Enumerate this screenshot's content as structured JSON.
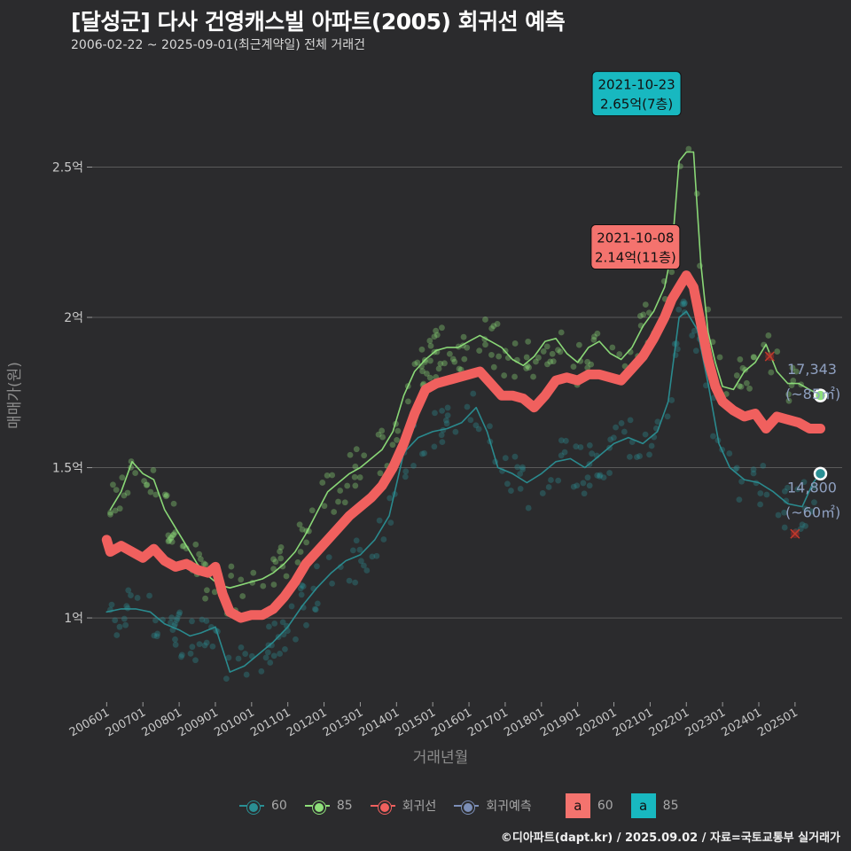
{
  "title": "[달성군] 다사 건영캐스빌 아파트(2005) 회귀선 예측",
  "subtitle": "2006-02-22 ~ 2025-09-01(최근계약일) 전체 거래건",
  "footer": "©디아파트(dapt.kr) / 2025.09.02 / 자료=국토교통부 실거래가",
  "colors": {
    "background": "#2b2b2d",
    "grid": "#5a5a5a",
    "s60": "#2a8f94",
    "s85": "#8ee07a",
    "regression": "#f0605e",
    "forecast": "#7c8fb8",
    "box60": "#f4736e",
    "box85": "#18b8c0"
  },
  "chart_data": {
    "type": "line",
    "title": "[달성군] 다사 건영캐스빌 아파트(2005) 회귀선 예측",
    "xlabel": "거래년월",
    "ylabel": "매매가(원)",
    "x_ticks": [
      "200601",
      "200701",
      "200801",
      "200901",
      "201001",
      "201101",
      "201201",
      "201301",
      "201401",
      "201501",
      "201601",
      "201701",
      "201801",
      "201901",
      "202001",
      "202101",
      "202201",
      "202301",
      "202401",
      "202501"
    ],
    "y_ticks": [
      {
        "value": 1.0,
        "label": "1억"
      },
      {
        "value": 1.5,
        "label": "1.5억"
      },
      {
        "value": 2.0,
        "label": "2억"
      },
      {
        "value": 2.5,
        "label": "2.5억"
      }
    ],
    "xlim": [
      2005.6,
      2026.3
    ],
    "ylim": [
      0.72,
      2.82
    ],
    "grid": true,
    "legend_position": "bottom",
    "series": [
      {
        "name": "85",
        "key": "s85",
        "points": [
          [
            2006.1,
            1.36
          ],
          [
            2006.4,
            1.42
          ],
          [
            2006.7,
            1.52
          ],
          [
            2007.0,
            1.48
          ],
          [
            2007.3,
            1.46
          ],
          [
            2007.6,
            1.36
          ],
          [
            2007.9,
            1.3
          ],
          [
            2008.2,
            1.24
          ],
          [
            2008.5,
            1.18
          ],
          [
            2008.8,
            1.14
          ],
          [
            2009.1,
            1.11
          ],
          [
            2009.4,
            1.1
          ],
          [
            2009.7,
            1.11
          ],
          [
            2010.0,
            1.12
          ],
          [
            2010.3,
            1.13
          ],
          [
            2010.6,
            1.15
          ],
          [
            2010.9,
            1.18
          ],
          [
            2011.2,
            1.22
          ],
          [
            2011.5,
            1.28
          ],
          [
            2011.8,
            1.35
          ],
          [
            2012.1,
            1.42
          ],
          [
            2012.4,
            1.45
          ],
          [
            2012.7,
            1.48
          ],
          [
            2013.0,
            1.5
          ],
          [
            2013.3,
            1.53
          ],
          [
            2013.6,
            1.56
          ],
          [
            2013.9,
            1.62
          ],
          [
            2014.2,
            1.74
          ],
          [
            2014.5,
            1.82
          ],
          [
            2014.8,
            1.86
          ],
          [
            2015.1,
            1.89
          ],
          [
            2015.4,
            1.9
          ],
          [
            2015.7,
            1.9
          ],
          [
            2016.0,
            1.92
          ],
          [
            2016.3,
            1.94
          ],
          [
            2016.6,
            1.92
          ],
          [
            2016.9,
            1.9
          ],
          [
            2017.2,
            1.86
          ],
          [
            2017.5,
            1.84
          ],
          [
            2017.8,
            1.87
          ],
          [
            2018.1,
            1.92
          ],
          [
            2018.4,
            1.93
          ],
          [
            2018.7,
            1.88
          ],
          [
            2019.0,
            1.85
          ],
          [
            2019.3,
            1.9
          ],
          [
            2019.6,
            1.92
          ],
          [
            2019.9,
            1.88
          ],
          [
            2020.2,
            1.86
          ],
          [
            2020.5,
            1.9
          ],
          [
            2020.8,
            1.97
          ],
          [
            2021.1,
            2.02
          ],
          [
            2021.4,
            2.1
          ],
          [
            2021.6,
            2.22
          ],
          [
            2021.8,
            2.52
          ],
          [
            2022.0,
            2.55
          ],
          [
            2022.2,
            2.55
          ],
          [
            2022.4,
            2.18
          ],
          [
            2022.6,
            1.95
          ],
          [
            2022.8,
            1.85
          ],
          [
            2023.0,
            1.77
          ],
          [
            2023.3,
            1.76
          ],
          [
            2023.6,
            1.82
          ],
          [
            2023.9,
            1.85
          ],
          [
            2024.2,
            1.91
          ],
          [
            2024.5,
            1.82
          ],
          [
            2024.8,
            1.78
          ],
          [
            2025.1,
            1.78
          ],
          [
            2025.4,
            1.76
          ],
          [
            2025.7,
            1.74
          ]
        ]
      },
      {
        "name": "60",
        "key": "s60",
        "points": [
          [
            2006.0,
            1.02
          ],
          [
            2006.4,
            1.03
          ],
          [
            2006.8,
            1.03
          ],
          [
            2007.2,
            1.02
          ],
          [
            2007.6,
            0.98
          ],
          [
            2008.0,
            0.96
          ],
          [
            2008.3,
            0.94
          ],
          [
            2008.6,
            0.95
          ],
          [
            2009.0,
            0.97
          ],
          [
            2009.4,
            0.82
          ],
          [
            2009.8,
            0.84
          ],
          [
            2010.2,
            0.88
          ],
          [
            2010.6,
            0.92
          ],
          [
            2011.0,
            0.97
          ],
          [
            2011.4,
            1.04
          ],
          [
            2011.8,
            1.1
          ],
          [
            2012.2,
            1.15
          ],
          [
            2012.6,
            1.19
          ],
          [
            2013.0,
            1.21
          ],
          [
            2013.4,
            1.26
          ],
          [
            2013.8,
            1.34
          ],
          [
            2014.2,
            1.55
          ],
          [
            2014.6,
            1.6
          ],
          [
            2015.0,
            1.62
          ],
          [
            2015.4,
            1.63
          ],
          [
            2015.8,
            1.65
          ],
          [
            2016.2,
            1.7
          ],
          [
            2016.5,
            1.62
          ],
          [
            2016.8,
            1.5
          ],
          [
            2017.2,
            1.48
          ],
          [
            2017.6,
            1.45
          ],
          [
            2018.0,
            1.48
          ],
          [
            2018.4,
            1.52
          ],
          [
            2018.8,
            1.53
          ],
          [
            2019.2,
            1.5
          ],
          [
            2019.6,
            1.54
          ],
          [
            2020.0,
            1.58
          ],
          [
            2020.4,
            1.6
          ],
          [
            2020.8,
            1.58
          ],
          [
            2021.2,
            1.62
          ],
          [
            2021.5,
            1.72
          ],
          [
            2021.8,
            2.0
          ],
          [
            2022.0,
            2.02
          ],
          [
            2022.3,
            1.96
          ],
          [
            2022.6,
            1.78
          ],
          [
            2022.9,
            1.58
          ],
          [
            2023.2,
            1.5
          ],
          [
            2023.6,
            1.46
          ],
          [
            2024.0,
            1.45
          ],
          [
            2024.4,
            1.42
          ],
          [
            2024.8,
            1.38
          ],
          [
            2025.2,
            1.37
          ],
          [
            2025.5,
            1.45
          ],
          [
            2025.7,
            1.48
          ]
        ]
      },
      {
        "name": "회귀선",
        "key": "regression",
        "points": [
          [
            2006.0,
            1.26
          ],
          [
            2006.1,
            1.22
          ],
          [
            2006.4,
            1.24
          ],
          [
            2006.7,
            1.22
          ],
          [
            2007.0,
            1.2
          ],
          [
            2007.3,
            1.23
          ],
          [
            2007.6,
            1.19
          ],
          [
            2007.9,
            1.17
          ],
          [
            2008.2,
            1.18
          ],
          [
            2008.5,
            1.16
          ],
          [
            2008.8,
            1.15
          ],
          [
            2009.0,
            1.17
          ],
          [
            2009.2,
            1.08
          ],
          [
            2009.4,
            1.02
          ],
          [
            2009.7,
            1.0
          ],
          [
            2010.0,
            1.01
          ],
          [
            2010.3,
            1.01
          ],
          [
            2010.6,
            1.03
          ],
          [
            2010.9,
            1.07
          ],
          [
            2011.2,
            1.12
          ],
          [
            2011.5,
            1.18
          ],
          [
            2011.8,
            1.22
          ],
          [
            2012.1,
            1.26
          ],
          [
            2012.4,
            1.3
          ],
          [
            2012.7,
            1.34
          ],
          [
            2013.0,
            1.37
          ],
          [
            2013.3,
            1.4
          ],
          [
            2013.6,
            1.44
          ],
          [
            2013.9,
            1.5
          ],
          [
            2014.2,
            1.58
          ],
          [
            2014.5,
            1.68
          ],
          [
            2014.8,
            1.76
          ],
          [
            2015.1,
            1.78
          ],
          [
            2015.4,
            1.79
          ],
          [
            2015.7,
            1.8
          ],
          [
            2016.0,
            1.81
          ],
          [
            2016.3,
            1.82
          ],
          [
            2016.6,
            1.78
          ],
          [
            2016.9,
            1.74
          ],
          [
            2017.2,
            1.74
          ],
          [
            2017.5,
            1.73
          ],
          [
            2017.8,
            1.7
          ],
          [
            2018.1,
            1.74
          ],
          [
            2018.4,
            1.79
          ],
          [
            2018.7,
            1.8
          ],
          [
            2019.0,
            1.79
          ],
          [
            2019.3,
            1.81
          ],
          [
            2019.6,
            1.81
          ],
          [
            2019.9,
            1.8
          ],
          [
            2020.2,
            1.79
          ],
          [
            2020.5,
            1.83
          ],
          [
            2020.8,
            1.87
          ],
          [
            2021.1,
            1.93
          ],
          [
            2021.4,
            2.0
          ],
          [
            2021.6,
            2.06
          ],
          [
            2021.8,
            2.1
          ],
          [
            2022.0,
            2.14
          ],
          [
            2022.2,
            2.1
          ],
          [
            2022.4,
            1.98
          ],
          [
            2022.6,
            1.86
          ],
          [
            2022.8,
            1.77
          ],
          [
            2023.0,
            1.72
          ],
          [
            2023.3,
            1.69
          ],
          [
            2023.6,
            1.67
          ],
          [
            2023.9,
            1.68
          ],
          [
            2024.2,
            1.63
          ],
          [
            2024.5,
            1.67
          ],
          [
            2024.8,
            1.66
          ],
          [
            2025.1,
            1.65
          ],
          [
            2025.4,
            1.63
          ],
          [
            2025.7,
            1.63
          ]
        ]
      }
    ],
    "end_points": [
      {
        "series": "85",
        "key": "s85",
        "x": 2025.7,
        "y": 1.74,
        "value_label": "17,343",
        "size_label": "(~85㎡)"
      },
      {
        "series": "60",
        "key": "s60",
        "x": 2025.7,
        "y": 1.48,
        "value_label": "14,800",
        "size_label": "(~60㎡)"
      }
    ],
    "outliers": [
      {
        "x": 2024.3,
        "y": 1.87
      },
      {
        "x": 2025.0,
        "y": 1.28
      }
    ],
    "annotations": [
      {
        "key": "box85",
        "date": "2021-10-23",
        "value": "2.65억(7층)",
        "x": 2021.8,
        "y": 2.65
      },
      {
        "key": "box60",
        "date": "2021-10-08",
        "value": "2.14억(11층)",
        "x": 2021.77,
        "y": 2.14
      }
    ]
  },
  "legend": {
    "items": [
      {
        "label": "60",
        "key": "s60"
      },
      {
        "label": "85",
        "key": "s85"
      },
      {
        "label": "회귀선",
        "key": "regression"
      },
      {
        "label": "회귀예측",
        "key": "forecast"
      }
    ],
    "boxes": [
      {
        "glyph": "a",
        "label": "60",
        "key": "box60"
      },
      {
        "glyph": "a",
        "label": "85",
        "key": "box85"
      }
    ]
  }
}
